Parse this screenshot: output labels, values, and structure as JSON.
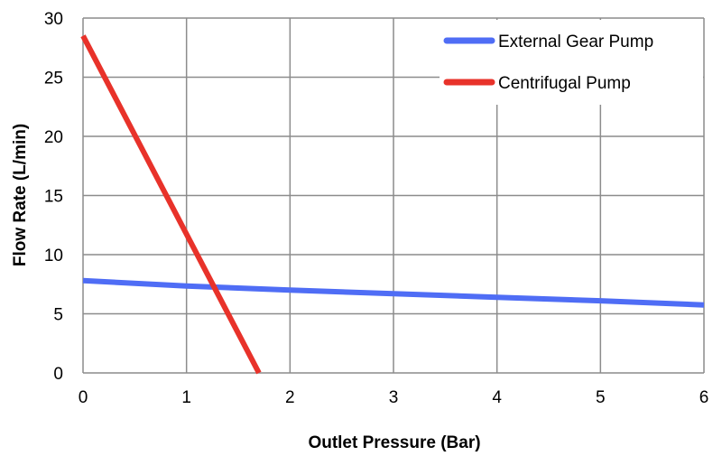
{
  "chart_data": {
    "type": "line",
    "title": "",
    "xlabel": "Outlet Pressure (Bar)",
    "ylabel": "Flow Rate (L/min)",
    "xlim": [
      0,
      6
    ],
    "ylim": [
      0,
      30
    ],
    "x_ticks": [
      0,
      1,
      2,
      3,
      4,
      5,
      6
    ],
    "y_ticks": [
      0,
      5,
      10,
      15,
      20,
      25,
      30
    ],
    "grid": true,
    "legend_position": "top-right",
    "series": [
      {
        "name": "External Gear Pump",
        "color": "#4f6df5",
        "points": [
          [
            0,
            7.8
          ],
          [
            1,
            7.35
          ],
          [
            2,
            7.0
          ],
          [
            3,
            6.7
          ],
          [
            4,
            6.4
          ],
          [
            5,
            6.1
          ],
          [
            6,
            5.75
          ]
        ]
      },
      {
        "name": "Centrifugal Pump",
        "color": "#e8322a",
        "points": [
          [
            0,
            28.5
          ],
          [
            1.7,
            0
          ]
        ]
      }
    ]
  }
}
